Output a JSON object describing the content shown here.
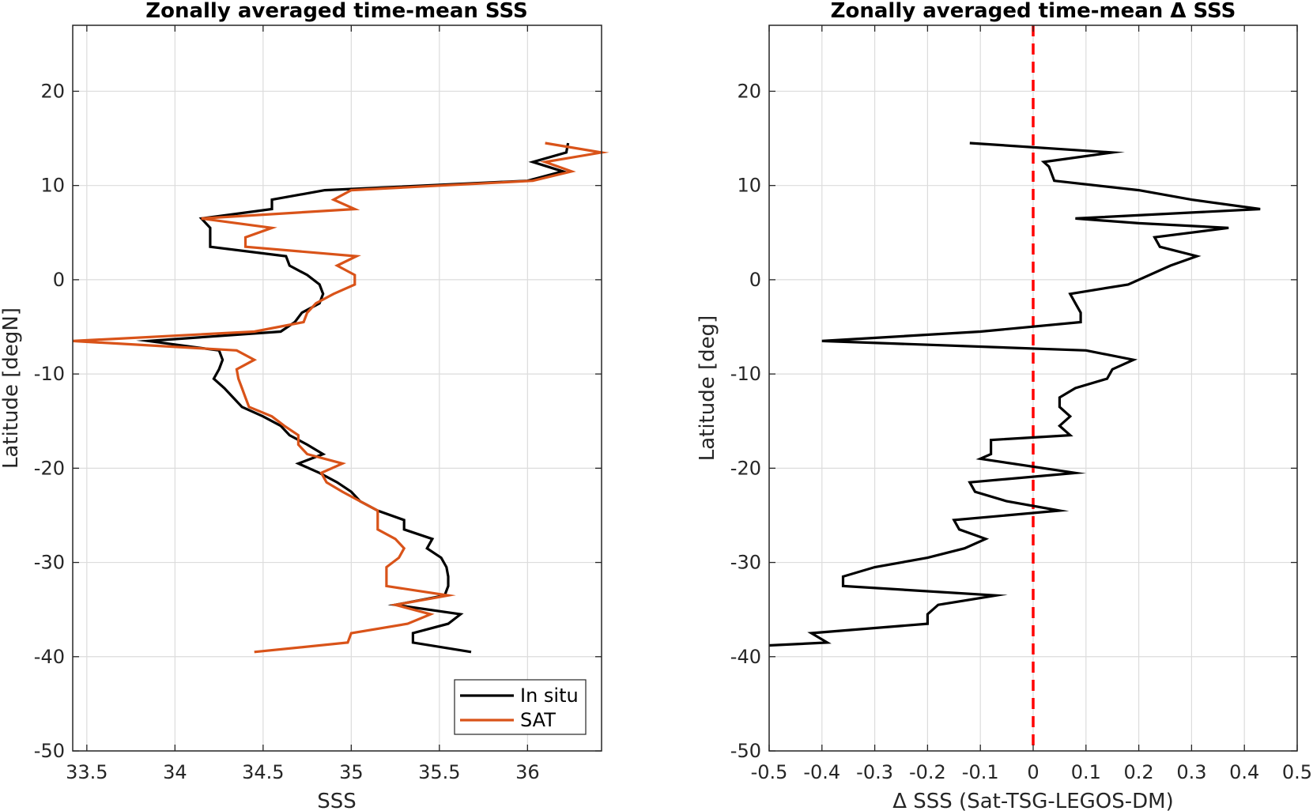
{
  "chart_data": [
    {
      "type": "line",
      "title": "Zonally averaged time-mean SSS",
      "xlabel": "SSS",
      "ylabel": "Latitude [degN]",
      "xlim": [
        33.42,
        36.42
      ],
      "ylim": [
        -50,
        27
      ],
      "xticks": [
        33.5,
        34,
        34.5,
        35,
        35.5,
        36
      ],
      "xtick_labels": [
        "33.5",
        "34",
        "34.5",
        "35",
        "35.5",
        "36"
      ],
      "yticks": [
        -50,
        -40,
        -30,
        -20,
        -10,
        0,
        10,
        20
      ],
      "ytick_labels": [
        "-50",
        "-40",
        "-30",
        "-20",
        "-10",
        "0",
        "10",
        "20"
      ],
      "grid": true,
      "legend": "bottom-right",
      "series": [
        {
          "name": "In situ",
          "color": "#000000",
          "points": [
            [
              36.23,
              14.5
            ],
            [
              36.22,
              13.5
            ],
            [
              36.03,
              12.5
            ],
            [
              36.2,
              11.5
            ],
            [
              36.0,
              10.5
            ],
            [
              34.85,
              9.5
            ],
            [
              34.55,
              8.5
            ],
            [
              34.55,
              7.5
            ],
            [
              34.15,
              6.5
            ],
            [
              34.2,
              5.5
            ],
            [
              34.2,
              4.5
            ],
            [
              34.2,
              3.5
            ],
            [
              34.63,
              2.5
            ],
            [
              34.65,
              1.5
            ],
            [
              34.75,
              0.5
            ],
            [
              34.82,
              -0.5
            ],
            [
              34.84,
              -1.5
            ],
            [
              34.82,
              -2.5
            ],
            [
              34.72,
              -3.5
            ],
            [
              34.68,
              -4.5
            ],
            [
              34.6,
              -5.5
            ],
            [
              33.85,
              -6.5
            ],
            [
              34.25,
              -7.5
            ],
            [
              34.27,
              -8.5
            ],
            [
              34.25,
              -9.5
            ],
            [
              34.22,
              -10.5
            ],
            [
              34.28,
              -11.5
            ],
            [
              34.33,
              -12.5
            ],
            [
              34.38,
              -13.5
            ],
            [
              34.5,
              -14.5
            ],
            [
              34.6,
              -15.5
            ],
            [
              34.65,
              -16.5
            ],
            [
              34.75,
              -17.5
            ],
            [
              34.84,
              -18.5
            ],
            [
              34.7,
              -19.5
            ],
            [
              34.82,
              -20.5
            ],
            [
              34.92,
              -21.5
            ],
            [
              35.0,
              -22.5
            ],
            [
              35.05,
              -23.5
            ],
            [
              35.15,
              -24.5
            ],
            [
              35.3,
              -25.5
            ],
            [
              35.3,
              -26.5
            ],
            [
              35.46,
              -27.5
            ],
            [
              35.43,
              -28.5
            ],
            [
              35.51,
              -29.5
            ],
            [
              35.54,
              -30.5
            ],
            [
              35.55,
              -31.5
            ],
            [
              35.55,
              -32.5
            ],
            [
              35.53,
              -33.5
            ],
            [
              35.25,
              -34.5
            ],
            [
              35.62,
              -35.5
            ],
            [
              35.55,
              -36.5
            ],
            [
              35.35,
              -37.5
            ],
            [
              35.35,
              -38.5
            ],
            [
              35.68,
              -39.5
            ]
          ]
        },
        {
          "name": "SAT",
          "color": "#d95319",
          "points": [
            [
              36.1,
              14.5
            ],
            [
              36.42,
              13.5
            ],
            [
              36.1,
              12.5
            ],
            [
              36.25,
              11.5
            ],
            [
              36.03,
              10.5
            ],
            [
              35.0,
              9.5
            ],
            [
              34.9,
              8.5
            ],
            [
              35.02,
              7.5
            ],
            [
              34.15,
              6.5
            ],
            [
              34.55,
              5.5
            ],
            [
              34.4,
              4.5
            ],
            [
              34.4,
              3.5
            ],
            [
              35.03,
              2.5
            ],
            [
              34.92,
              1.5
            ],
            [
              35.02,
              0.5
            ],
            [
              35.02,
              -0.5
            ],
            [
              34.9,
              -1.5
            ],
            [
              34.8,
              -2.5
            ],
            [
              34.75,
              -3.5
            ],
            [
              34.73,
              -4.5
            ],
            [
              34.45,
              -5.5
            ],
            [
              33.42,
              -6.5
            ],
            [
              34.35,
              -7.5
            ],
            [
              34.45,
              -8.5
            ],
            [
              34.35,
              -9.5
            ],
            [
              34.36,
              -10.5
            ],
            [
              34.38,
              -11.5
            ],
            [
              34.4,
              -12.5
            ],
            [
              34.42,
              -13.5
            ],
            [
              34.55,
              -14.5
            ],
            [
              34.62,
              -15.5
            ],
            [
              34.7,
              -16.5
            ],
            [
              34.7,
              -17.5
            ],
            [
              34.75,
              -18.5
            ],
            [
              34.95,
              -19.5
            ],
            [
              34.83,
              -20.5
            ],
            [
              34.86,
              -21.5
            ],
            [
              34.95,
              -22.5
            ],
            [
              35.05,
              -23.5
            ],
            [
              35.15,
              -24.5
            ],
            [
              35.15,
              -25.5
            ],
            [
              35.15,
              -26.5
            ],
            [
              35.25,
              -27.5
            ],
            [
              35.3,
              -28.5
            ],
            [
              35.27,
              -29.5
            ],
            [
              35.2,
              -30.5
            ],
            [
              35.2,
              -31.5
            ],
            [
              35.2,
              -32.5
            ],
            [
              35.55,
              -33.5
            ],
            [
              35.25,
              -34.5
            ],
            [
              35.45,
              -35.5
            ],
            [
              35.32,
              -36.5
            ],
            [
              35.0,
              -37.5
            ],
            [
              34.98,
              -38.5
            ],
            [
              34.45,
              -39.5
            ]
          ]
        }
      ]
    },
    {
      "type": "line",
      "title": "Zonally averaged time-mean Δ SSS",
      "xlabel": "Δ SSS (Sat-TSG-LEGOS-DM)",
      "ylabel": "Latitude [deg]",
      "xlim": [
        -0.5,
        0.5
      ],
      "ylim": [
        -50,
        27
      ],
      "xticks": [
        -0.5,
        -0.4,
        -0.3,
        -0.2,
        -0.1,
        0,
        0.1,
        0.2,
        0.3,
        0.4,
        0.5
      ],
      "xtick_labels": [
        "-0.5",
        "-0.4",
        "-0.3",
        "-0.2",
        "-0.1",
        "0",
        "0.1",
        "0.2",
        "0.3",
        "0.4",
        "0.5"
      ],
      "yticks": [
        -50,
        -40,
        -30,
        -20,
        -10,
        0,
        10,
        20
      ],
      "ytick_labels": [
        "-50",
        "-40",
        "-30",
        "-20",
        "-10",
        "0",
        "10",
        "20"
      ],
      "grid": true,
      "zero_line_color": "#ff0000",
      "series": [
        {
          "color": "#000000",
          "points": [
            [
              -0.12,
              14.5
            ],
            [
              0.15,
              13.5
            ],
            [
              0.02,
              12.5
            ],
            [
              0.03,
              12.0
            ],
            [
              0.04,
              10.5
            ],
            [
              0.2,
              9.5
            ],
            [
              0.3,
              8.5
            ],
            [
              0.43,
              7.5
            ],
            [
              0.08,
              6.5
            ],
            [
              0.2,
              6.0
            ],
            [
              0.37,
              5.5
            ],
            [
              0.23,
              4.5
            ],
            [
              0.24,
              3.5
            ],
            [
              0.31,
              2.5
            ],
            [
              0.26,
              1.5
            ],
            [
              0.18,
              -0.5
            ],
            [
              0.07,
              -1.5
            ],
            [
              0.08,
              -2.5
            ],
            [
              0.09,
              -3.5
            ],
            [
              0.09,
              -4.5
            ],
            [
              -0.1,
              -5.5
            ],
            [
              -0.4,
              -6.5
            ],
            [
              0.1,
              -7.5
            ],
            [
              0.19,
              -8.5
            ],
            [
              0.15,
              -9.5
            ],
            [
              0.14,
              -10.5
            ],
            [
              0.08,
              -11.5
            ],
            [
              0.05,
              -12.5
            ],
            [
              0.05,
              -13.5
            ],
            [
              0.07,
              -14.5
            ],
            [
              0.05,
              -15.5
            ],
            [
              0.07,
              -16.5
            ],
            [
              -0.08,
              -17.0
            ],
            [
              -0.08,
              -18.5
            ],
            [
              -0.1,
              -19.0
            ],
            [
              0.08,
              -20.5
            ],
            [
              -0.12,
              -21.5
            ],
            [
              -0.11,
              -22.5
            ],
            [
              -0.05,
              -23.5
            ],
            [
              0.05,
              -24.5
            ],
            [
              -0.15,
              -25.5
            ],
            [
              -0.14,
              -26.5
            ],
            [
              -0.09,
              -27.5
            ],
            [
              -0.13,
              -28.5
            ],
            [
              -0.2,
              -29.5
            ],
            [
              -0.3,
              -30.5
            ],
            [
              -0.36,
              -31.5
            ],
            [
              -0.36,
              -32.5
            ],
            [
              -0.07,
              -33.5
            ],
            [
              -0.18,
              -34.5
            ],
            [
              -0.2,
              -35.5
            ],
            [
              -0.2,
              -36.5
            ],
            [
              -0.42,
              -37.5
            ],
            [
              -0.39,
              -38.5
            ],
            [
              -0.5,
              -38.8
            ]
          ]
        }
      ]
    }
  ],
  "legend": {
    "items": [
      {
        "label": "In situ",
        "color": "#000000"
      },
      {
        "label": "SAT",
        "color": "#d95319"
      }
    ]
  }
}
